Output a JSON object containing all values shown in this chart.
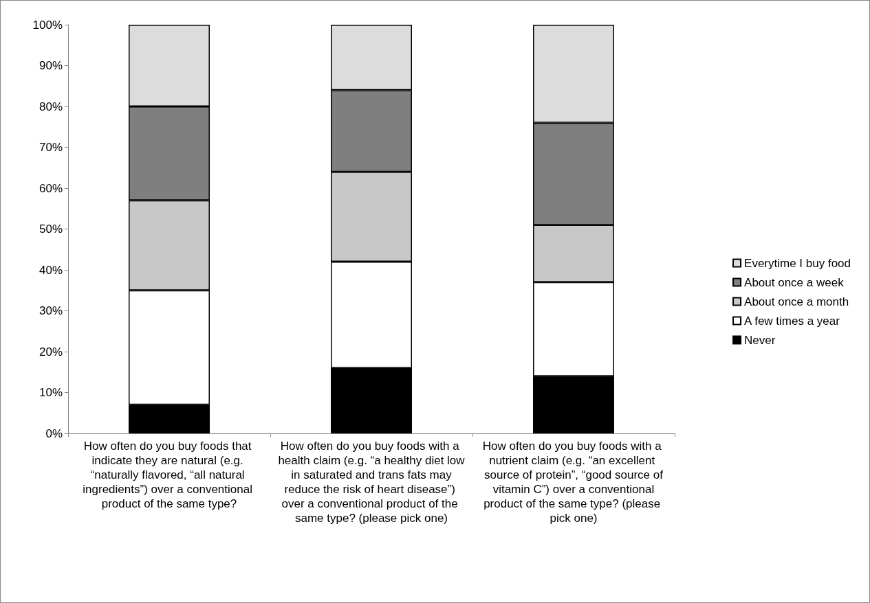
{
  "chart_data": {
    "type": "bar",
    "stacked": true,
    "categories": [
      "How often do you buy foods that indicate they are natural (e.g. “naturally flavored, “all natural ingredients”) over a conventional product of the same type?",
      "How often do you buy foods with a health claim (e.g. “a healthy diet low in saturated and trans fats may reduce the risk of heart disease”) over a conventional product of the same type? (please pick one)",
      "How often do you buy foods with a nutrient claim (e.g. “an excellent source of protein”, “good source of vitamin C”) over a conventional product of the same type? (please pick one)"
    ],
    "series": [
      {
        "name": "Never",
        "color": "#000000",
        "values": [
          7,
          16,
          14
        ]
      },
      {
        "name": "A few times a year",
        "color": "#ffffff",
        "values": [
          28,
          26,
          23
        ]
      },
      {
        "name": "About once a month",
        "color": "#c8c8c8",
        "values": [
          22,
          22,
          14
        ]
      },
      {
        "name": "About once a week",
        "color": "#7f7f7f",
        "values": [
          23,
          20,
          25
        ]
      },
      {
        "name": "Everytime I buy food",
        "color": "#dcdcdc",
        "values": [
          20,
          16,
          24
        ]
      }
    ],
    "ylim": [
      0,
      100
    ],
    "yticks": [
      {
        "value": 0,
        "label": "0%"
      },
      {
        "value": 10,
        "label": "10%"
      },
      {
        "value": 20,
        "label": "20%"
      },
      {
        "value": 30,
        "label": "30%"
      },
      {
        "value": 40,
        "label": "40%"
      },
      {
        "value": 50,
        "label": "50%"
      },
      {
        "value": 60,
        "label": "60%"
      },
      {
        "value": 70,
        "label": "70%"
      },
      {
        "value": 80,
        "label": "80%"
      },
      {
        "value": 90,
        "label": "90%"
      },
      {
        "value": 100,
        "label": "100%"
      }
    ],
    "grid": false,
    "legend": "right"
  }
}
